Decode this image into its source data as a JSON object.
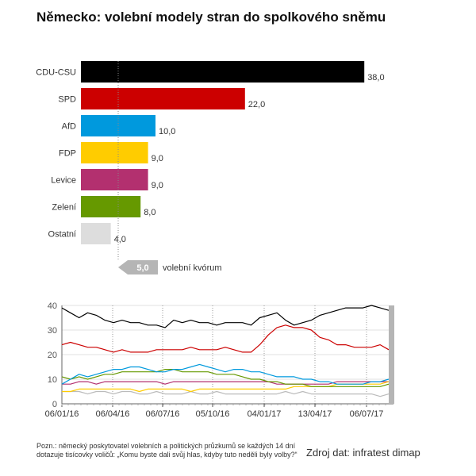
{
  "header": {
    "title": "Německo: volební modely stran do spolkového sněmu"
  },
  "chart_data": [
    {
      "type": "bar",
      "orientation": "horizontal",
      "categories": [
        "CDU-CSU",
        "SPD",
        "AfD",
        "FDP",
        "Levice",
        "Zelení",
        "Ostatní"
      ],
      "values": [
        38.0,
        22.0,
        10.0,
        9.0,
        9.0,
        8.0,
        4.0
      ],
      "value_labels": [
        "38,0",
        "22,0",
        "10,0",
        "9,0",
        "9,0",
        "8,0",
        "4,0"
      ],
      "colors": [
        "#000000",
        "#cc0000",
        "#0099dd",
        "#ffcc00",
        "#b3306f",
        "#669900",
        "#dddddd"
      ],
      "threshold": {
        "value": 5.0,
        "value_label": "5,0",
        "label": "volební kvórum"
      }
    },
    {
      "type": "line",
      "x_tick_labels": [
        "06/01/16",
        "06/04/16",
        "06/07/16",
        "05/10/16",
        "04/01/17",
        "13/04/17",
        "06/07/17"
      ],
      "x_range": [
        "06/01/16",
        "20/07/17"
      ],
      "ylim": [
        0,
        40
      ],
      "y_ticks": [
        0,
        10,
        20,
        30,
        40
      ],
      "grid": true,
      "series": [
        {
          "key": "cdu",
          "color": "#000000",
          "values": [
            39,
            37,
            35,
            37,
            36,
            34,
            33,
            34,
            33,
            33,
            32,
            32,
            31,
            34,
            33,
            34,
            33,
            33,
            32,
            33,
            33,
            33,
            32,
            35,
            36,
            37,
            34,
            32,
            33,
            34,
            36,
            37,
            38,
            39,
            39,
            39,
            40,
            39,
            38
          ]
        },
        {
          "key": "spd",
          "color": "#cc0000",
          "values": [
            24,
            25,
            24,
            23,
            23,
            22,
            21,
            22,
            21,
            21,
            21,
            22,
            22,
            22,
            22,
            23,
            22,
            22,
            22,
            23,
            22,
            21,
            21,
            24,
            28,
            31,
            32,
            31,
            31,
            30,
            27,
            26,
            24,
            24,
            23,
            23,
            23,
            24,
            22
          ]
        },
        {
          "key": "afd",
          "color": "#0099dd",
          "values": [
            8,
            10,
            12,
            11,
            12,
            13,
            14,
            14,
            15,
            15,
            14,
            13,
            13,
            14,
            14,
            15,
            16,
            15,
            14,
            13,
            14,
            14,
            13,
            13,
            12,
            11,
            11,
            11,
            10,
            10,
            9,
            9,
            8,
            8,
            8,
            8,
            9,
            9,
            10
          ]
        },
        {
          "key": "fdp",
          "color": "#ffcc00",
          "values": [
            5,
            5,
            6,
            6,
            6,
            6,
            6,
            6,
            6,
            5,
            6,
            6,
            6,
            6,
            6,
            5,
            6,
            6,
            6,
            6,
            6,
            6,
            6,
            6,
            6,
            6,
            6,
            7,
            7,
            7,
            7,
            7,
            8,
            8,
            8,
            8,
            8,
            8,
            9
          ]
        },
        {
          "key": "levice",
          "color": "#b3306f",
          "values": [
            8,
            8,
            9,
            9,
            8,
            9,
            9,
            9,
            9,
            9,
            9,
            9,
            8,
            9,
            9,
            9,
            9,
            9,
            9,
            9,
            9,
            9,
            9,
            9,
            9,
            8,
            8,
            8,
            8,
            8,
            8,
            8,
            9,
            9,
            9,
            9,
            9,
            9,
            9
          ]
        },
        {
          "key": "zeleni",
          "color": "#669900",
          "values": [
            11,
            10,
            11,
            10,
            11,
            12,
            12,
            13,
            13,
            13,
            13,
            13,
            14,
            14,
            13,
            13,
            13,
            13,
            12,
            12,
            12,
            11,
            10,
            10,
            9,
            9,
            8,
            8,
            8,
            7,
            7,
            7,
            7,
            7,
            7,
            7,
            7,
            7,
            8
          ]
        },
        {
          "key": "ostatni",
          "color": "#bbbbbb",
          "values": [
            5,
            5,
            5,
            4,
            5,
            5,
            4,
            5,
            5,
            4,
            4,
            5,
            4,
            4,
            4,
            5,
            4,
            4,
            5,
            4,
            4,
            4,
            4,
            4,
            4,
            4,
            5,
            4,
            5,
            4,
            4,
            4,
            4,
            4,
            4,
            4,
            4,
            3,
            4
          ]
        }
      ]
    }
  ],
  "footer": {
    "note": "Pozn.: německý poskytovatel volebních a politických průzkumů se každých 14 dní dotazuje tisícovky voličů: „Komu byste dali svůj hlas, kdyby tuto neděli byly volby?“",
    "source": "Zdroj dat: infratest dimap"
  }
}
